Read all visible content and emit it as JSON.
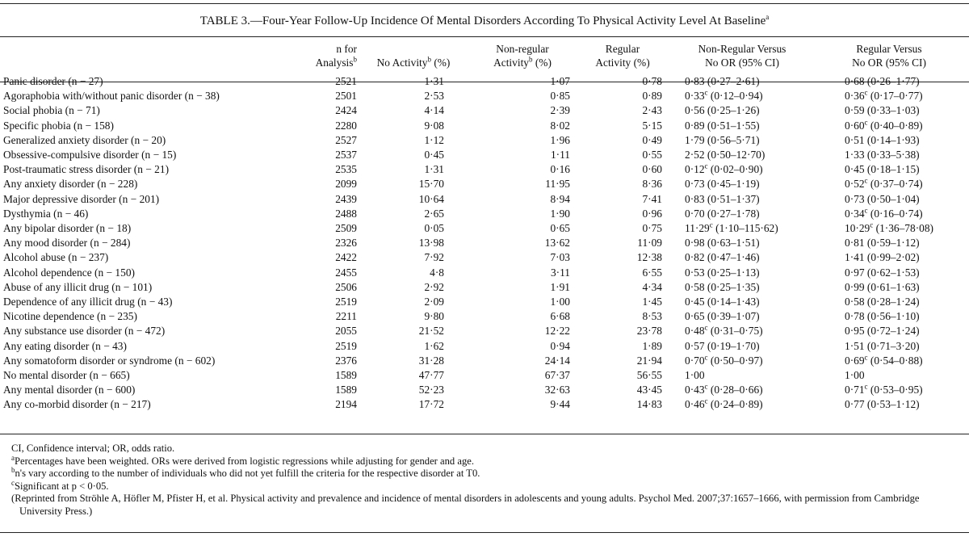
{
  "title": {
    "text": "TABLE 3.—Four-Year Follow-Up Incidence Of Mental Disorders According To Physical Activity Level At Baseline",
    "note": "a"
  },
  "table": {
    "header": [
      [],
      [
        [
          "n for"
        ],
        [
          "Analysis",
          {
            "sup": "b"
          }
        ]
      ],
      [
        [
          "No Activity",
          {
            "sup": "b"
          },
          " (%)"
        ]
      ],
      [
        [
          "Non-regular"
        ],
        [
          "Activity",
          {
            "sup": "b"
          },
          " (%)"
        ]
      ],
      [
        [
          "Regular"
        ],
        [
          "Activity (%)"
        ]
      ],
      [
        [
          "Non-Regular Versus"
        ],
        [
          "No OR (95% CI)"
        ]
      ],
      [
        [
          "Regular Versus"
        ],
        [
          "No OR (95% CI)"
        ]
      ]
    ],
    "rows": [
      [
        "Panic disorder (n − 27)",
        "2521",
        "1·31",
        "1·07",
        "0·78",
        {
          "or": "0·83",
          "ci": "(0·27–2·61)"
        },
        {
          "or": "0·68",
          "ci": "(0·26–1·77)"
        }
      ],
      [
        "Agoraphobia with/without panic disorder (n − 38)",
        "2501",
        "2·53",
        "0·85",
        "0·89",
        {
          "or": "0·33",
          "note": "c",
          "ci": "(0·12–0·94)"
        },
        {
          "or": "0·36",
          "note": "c",
          "ci": "(0·17–0·77)"
        }
      ],
      [
        "Social phobia (n − 71)",
        "2424",
        "4·14",
        "2·39",
        "2·43",
        {
          "or": "0·56",
          "ci": "(0·25–1·26)"
        },
        {
          "or": "0·59",
          "ci": "(0·33–1·03)"
        }
      ],
      [
        "Specific phobia (n − 158)",
        "2280",
        "9·08",
        "8·02",
        "5·15",
        {
          "or": "0·89",
          "ci": "(0·51–1·55)"
        },
        {
          "or": "0·60",
          "note": "c",
          "ci": "(0·40–0·89)"
        }
      ],
      [
        "Generalized anxiety disorder (n − 20)",
        "2527",
        "1·12",
        "1·96",
        "0·49",
        {
          "or": "1·79",
          "ci": "(0·56–5·71)"
        },
        {
          "or": "0·51",
          "ci": "(0·14–1·93)"
        }
      ],
      [
        "Obsessive-compulsive disorder (n − 15)",
        "2537",
        "0·45",
        "1·11",
        "0·55",
        {
          "or": "2·52",
          "ci": "(0·50–12·70)"
        },
        {
          "or": "1·33",
          "ci": "(0·33–5·38)"
        }
      ],
      [
        "Post-traumatic stress disorder (n − 21)",
        "2535",
        "1·31",
        "0·16",
        "0·60",
        {
          "or": "0·12",
          "note": "c",
          "ci": "(0·02–0·90)"
        },
        {
          "or": "0·45",
          "ci": "(0·18–1·15)"
        }
      ],
      [
        "Any anxiety disorder (n − 228)",
        "2099",
        "15·70",
        "11·95",
        "8·36",
        {
          "or": "0·73",
          "ci": "(0·45–1·19)"
        },
        {
          "or": "0·52",
          "note": "c",
          "ci": "(0·37–0·74)"
        }
      ],
      [
        "Major depressive disorder (n − 201)",
        "2439",
        "10·64",
        "8·94",
        "7·41",
        {
          "or": "0·83",
          "ci": "(0·51–1·37)"
        },
        {
          "or": "0·73",
          "ci": "(0·50–1·04)"
        }
      ],
      [
        "Dysthymia (n − 46)",
        "2488",
        "2·65",
        "1·90",
        "0·96",
        {
          "or": "0·70",
          "ci": "(0·27–1·78)"
        },
        {
          "or": "0·34",
          "note": "c",
          "ci": "(0·16–0·74)"
        }
      ],
      [
        "Any bipolar disorder (n − 18)",
        "2509",
        "0·05",
        "0·65",
        "0·75",
        {
          "or": "11·29",
          "note": "c",
          "ci": "(1·10–115·62)"
        },
        {
          "or": "10·29",
          "note": "c",
          "ci": "(1·36–78·08)"
        }
      ],
      [
        "Any mood disorder (n − 284)",
        "2326",
        "13·98",
        "13·62",
        "11·09",
        {
          "or": "0·98",
          "ci": "(0·63–1·51)"
        },
        {
          "or": "0·81",
          "ci": "(0·59–1·12)"
        }
      ],
      [
        "Alcohol abuse (n − 237)",
        "2422",
        "7·92",
        "7·03",
        "12·38",
        {
          "or": "0·82",
          "ci": "(0·47–1·46)"
        },
        {
          "or": "1·41",
          "ci": "(0·99–2·02)"
        }
      ],
      [
        "Alcohol dependence (n − 150)",
        "2455",
        "4·8",
        "3·11",
        "6·55",
        {
          "or": "0·53",
          "ci": "(0·25–1·13)"
        },
        {
          "or": "0·97",
          "ci": "(0·62–1·53)"
        }
      ],
      [
        "Abuse of any illicit drug (n − 101)",
        "2506",
        "2·92",
        "1·91",
        "4·34",
        {
          "or": "0·58",
          "ci": "(0·25–1·35)"
        },
        {
          "or": "0·99",
          "ci": "(0·61–1·63)"
        }
      ],
      [
        "Dependence of any illicit drug (n − 43)",
        "2519",
        "2·09",
        "1·00",
        "1·45",
        {
          "or": "0·45",
          "ci": "(0·14–1·43)"
        },
        {
          "or": "0·58",
          "ci": "(0·28–1·24)"
        }
      ],
      [
        "Nicotine dependence (n − 235)",
        "2211",
        "9·80",
        "6·68",
        "8·53",
        {
          "or": "0·65",
          "ci": "(0·39–1·07)"
        },
        {
          "or": "0·78",
          "ci": "(0·56–1·10)"
        }
      ],
      [
        "Any substance use disorder (n − 472)",
        "2055",
        "21·52",
        "12·22",
        "23·78",
        {
          "or": "0·48",
          "note": "c",
          "ci": "(0·31–0·75)"
        },
        {
          "or": "0·95",
          "ci": "(0·72–1·24)"
        }
      ],
      [
        "Any eating disorder (n − 43)",
        "2519",
        "1·62",
        "0·94",
        "1·89",
        {
          "or": "0·57",
          "ci": "(0·19–1·70)"
        },
        {
          "or": "1·51",
          "ci": "(0·71–3·20)"
        }
      ],
      [
        "Any somatoform disorder or syndrome (n − 602)",
        "2376",
        "31·28",
        "24·14",
        "21·94",
        {
          "or": "0·70",
          "note": "c",
          "ci": "(0·50–0·97)"
        },
        {
          "or": "0·69",
          "note": "c",
          "ci": "(0·54–0·88)"
        }
      ],
      [
        "No mental disorder (n − 665)",
        "1589",
        "47·77",
        "67·37",
        "56·55",
        {
          "or": "1·00"
        },
        {
          "or": "1·00"
        }
      ],
      [
        "Any mental disorder (n − 600)",
        "1589",
        "52·23",
        "32·63",
        "43·45",
        {
          "or": "0·43",
          "note": "c",
          "ci": "(0·28–0·66)"
        },
        {
          "or": "0·71",
          "note": "c",
          "ci": "(0·53–0·95)"
        }
      ],
      [
        "Any co-morbid disorder (n − 217)",
        "2194",
        "17·72",
        "9·44",
        "14·83",
        {
          "or": "0·46",
          "note": "c",
          "ci": "(0·24–0·89)"
        },
        {
          "or": "0·77",
          "ci": "(0·53–1·12)"
        }
      ]
    ]
  },
  "notes": [
    "CI, Confidence interval; OR, odds ratio.",
    {
      "mark": "a",
      "text": "Percentages have been weighted. ORs were derived from logistic regressions while adjusting for gender and age."
    },
    {
      "mark": "b",
      "text": "n's vary according to the number of individuals who did not yet fulfill the criteria for the respective disorder at T0."
    },
    {
      "mark": "c",
      "text": "Significant at p < 0·05."
    },
    "(Reprinted from Ströhle A, Höfler M, Pfister H, et al. Physical activity and prevalence and incidence of mental disorders in adolescents and young adults. Psychol Med. 2007;37:1657–1666, with permission from Cambridge University Press.)"
  ]
}
